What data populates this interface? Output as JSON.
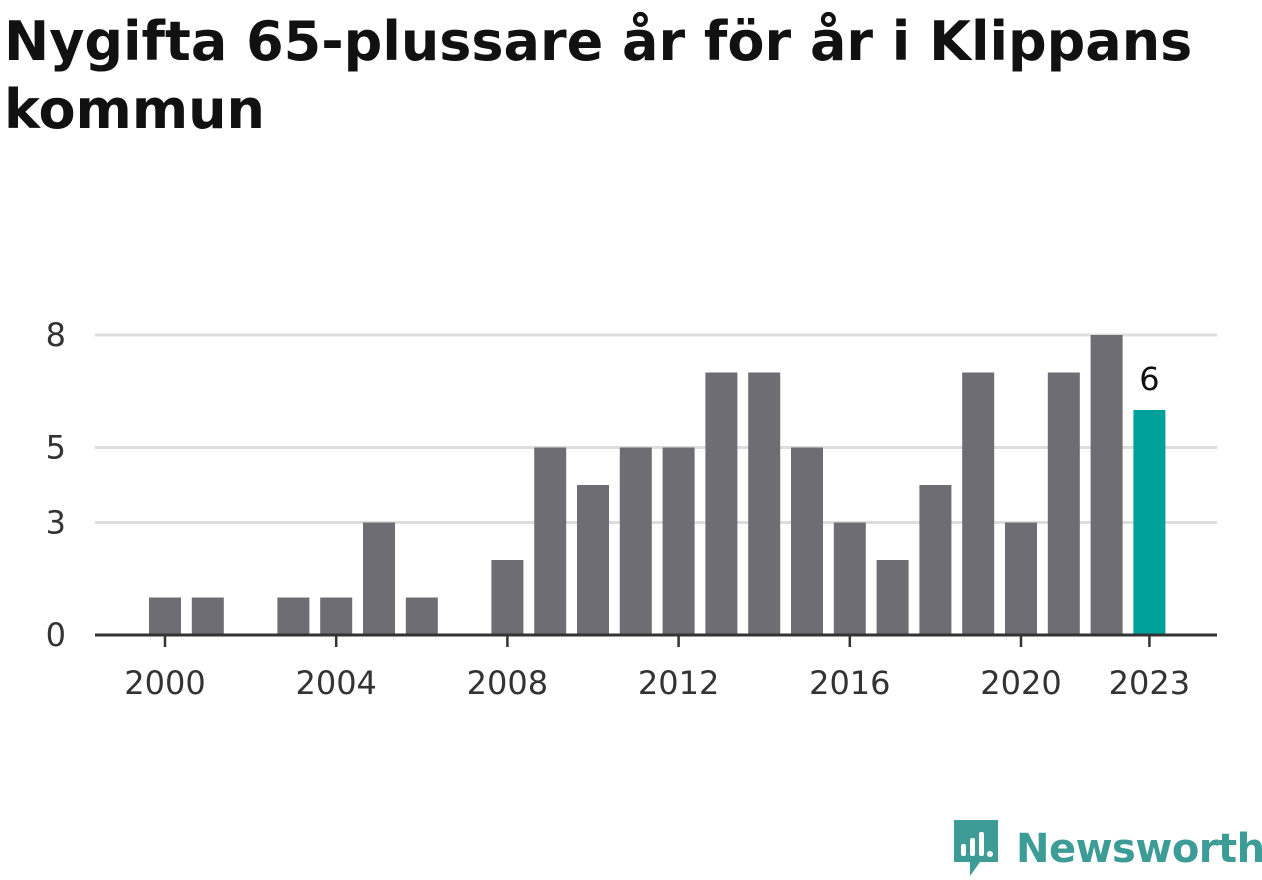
{
  "title": "Nygifta 65-plussare år för år i Klippans kommun",
  "brand": {
    "name": "Newsworthy",
    "icon": "newsworthy-logo-icon",
    "color": "#3d9c96"
  },
  "colors": {
    "bar": "#6e6d73",
    "highlight": "#00a19a",
    "grid": "#dddddd",
    "axis": "#333333"
  },
  "chart_data": {
    "type": "bar",
    "title": "Nygifta 65-plussare år för år i Klippans kommun",
    "xlabel": "",
    "ylabel": "",
    "x": [
      2000,
      2001,
      2002,
      2003,
      2004,
      2005,
      2006,
      2007,
      2008,
      2009,
      2010,
      2011,
      2012,
      2013,
      2014,
      2015,
      2016,
      2017,
      2018,
      2019,
      2020,
      2021,
      2022,
      2023
    ],
    "values": [
      1,
      1,
      0,
      1,
      1,
      3,
      1,
      0,
      2,
      5,
      4,
      5,
      5,
      7,
      7,
      5,
      3,
      2,
      4,
      7,
      3,
      7,
      8,
      6
    ],
    "xticks": [
      "2000",
      "2004",
      "2008",
      "2012",
      "2016",
      "2020",
      "2023"
    ],
    "yticks": [
      "0",
      "3",
      "5",
      "8"
    ],
    "ylim": [
      0,
      8
    ],
    "highlight": {
      "x": 2023,
      "label": "6"
    },
    "grid": true,
    "legend": "none"
  }
}
